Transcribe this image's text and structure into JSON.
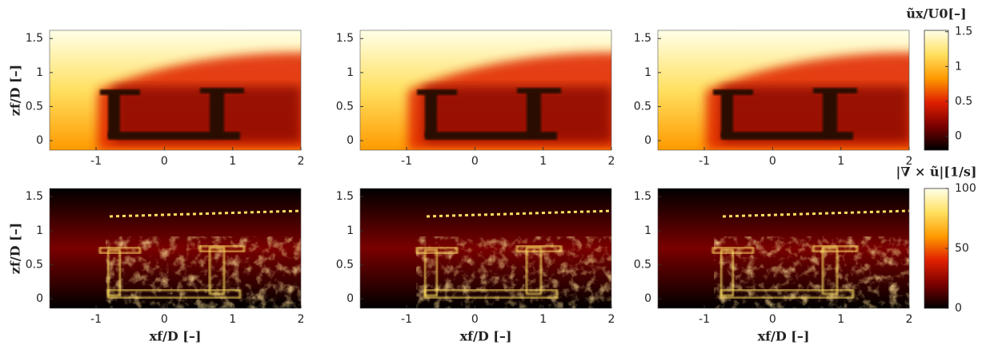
{
  "chart_data": [
    {
      "type": "heatmap",
      "colormap": [
        "#000000",
        "#7a0000",
        "#e02000",
        "#ff9a00",
        "#ffe060",
        "#ffffe8"
      ],
      "xlim": [
        -1.68,
        2
      ],
      "ylim": [
        -0.14,
        1.62
      ],
      "xticks": [
        -1,
        0,
        1,
        2
      ],
      "yticks": [
        0,
        0.5,
        1,
        1.5
      ],
      "ylabel": "zf/D [–]"
    },
    {
      "type": "heatmap",
      "colormap": [
        "#000000",
        "#7a0000",
        "#e02000",
        "#ff9a00",
        "#ffe060",
        "#ffffe8"
      ],
      "xlim": [
        -1.68,
        2
      ],
      "ylim": [
        -0.14,
        1.62
      ],
      "xticks": [
        -1,
        0,
        1,
        2
      ],
      "yticks": [
        0,
        0.5,
        1,
        1.5
      ]
    },
    {
      "type": "heatmap",
      "colormap": [
        "#000000",
        "#7a0000",
        "#e02000",
        "#ff9a00",
        "#ffe060",
        "#ffffe8"
      ],
      "xlim": [
        -1.68,
        2
      ],
      "ylim": [
        -0.14,
        1.62
      ],
      "xticks": [
        -1,
        0,
        1,
        2
      ],
      "yticks": [
        0,
        0.5,
        1,
        1.5
      ],
      "colorbar": {
        "label": "ũx/U0[–]",
        "lim": [
          -0.2,
          1.52
        ],
        "ticks": [
          0,
          0.5,
          1,
          1.5
        ]
      }
    },
    {
      "type": "heatmap",
      "colormap": [
        "#000000",
        "#7a0000",
        "#e02000",
        "#ff9a00",
        "#ffe060",
        "#ffffe8"
      ],
      "xlim": [
        -1.68,
        2
      ],
      "ylim": [
        -0.14,
        1.62
      ],
      "xticks": [
        -1,
        0,
        1,
        2
      ],
      "yticks": [
        0,
        0.5,
        1,
        1.5
      ],
      "ylabel": "zf/D [–]",
      "xlabel": "xf/D [–]"
    },
    {
      "type": "heatmap",
      "colormap": [
        "#000000",
        "#7a0000",
        "#e02000",
        "#ff9a00",
        "#ffe060",
        "#ffffe8"
      ],
      "xlim": [
        -1.68,
        2
      ],
      "ylim": [
        -0.14,
        1.62
      ],
      "xticks": [
        -1,
        0,
        1,
        2
      ],
      "yticks": [
        0,
        0.5,
        1,
        1.5
      ],
      "xlabel": "xf/D [–]"
    },
    {
      "type": "heatmap",
      "colormap": [
        "#000000",
        "#7a0000",
        "#e02000",
        "#ff9a00",
        "#ffe060",
        "#ffffe8"
      ],
      "xlim": [
        -1.68,
        2
      ],
      "ylim": [
        -0.14,
        1.62
      ],
      "xticks": [
        -1,
        0,
        1,
        2
      ],
      "yticks": [
        0,
        0.5,
        1,
        1.5
      ],
      "xlabel": "xf/D [–]",
      "colorbar": {
        "label": "|∇ × ũ|[1/s]",
        "lim": [
          0,
          100
        ],
        "ticks": [
          0,
          50,
          100
        ]
      }
    }
  ]
}
